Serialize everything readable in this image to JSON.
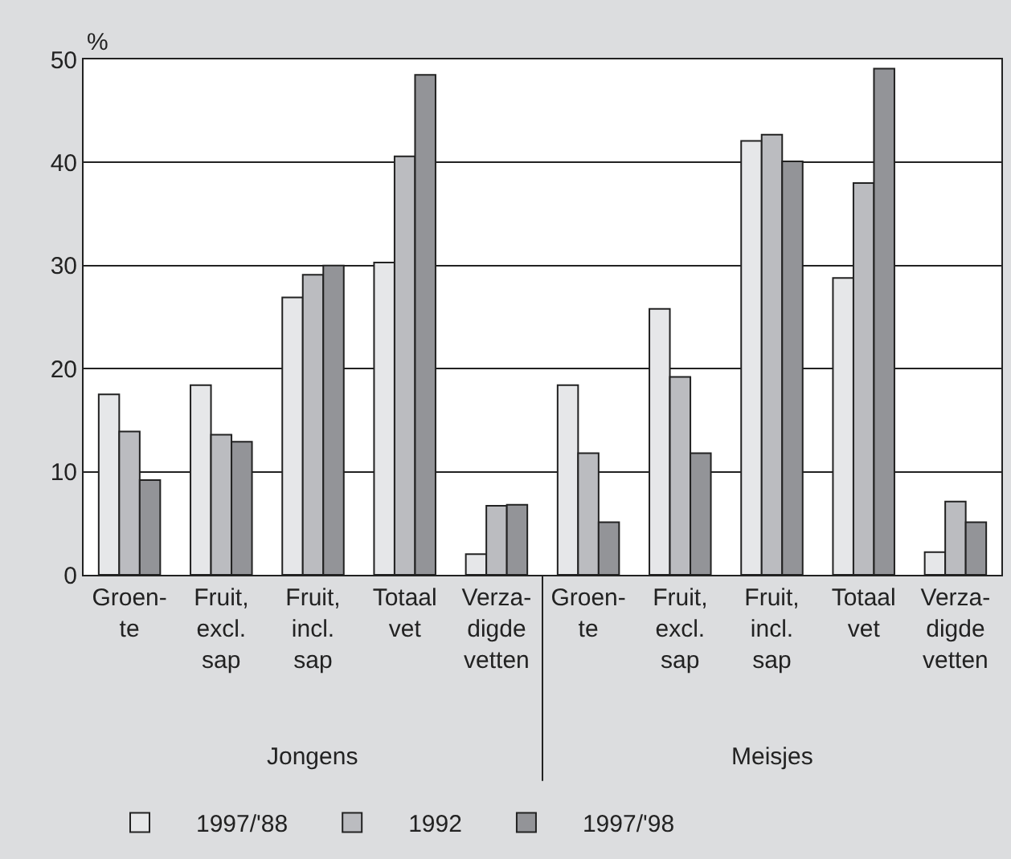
{
  "chart_data": {
    "type": "bar",
    "ylabel": "%",
    "categories": [
      "Groen-\nte",
      "Fruit,\nexcl.\nsap",
      "Fruit,\nincl.\nsap",
      "Totaal\nvet",
      "Verza-\ndigde\nvetten",
      "Groen-\nte",
      "Fruit,\nexcl.\nsap",
      "Fruit,\nincl.\nsap",
      "Totaal\nvet",
      "Verza-\ndigde\nvetten"
    ],
    "series": [
      {
        "name": "1997/'88",
        "color": "#e6e7e9",
        "values": [
          17.5,
          18.4,
          26.9,
          30.3,
          2.0,
          18.4,
          25.8,
          42.1,
          28.8,
          2.2
        ]
      },
      {
        "name": "1992",
        "color": "#bbbcc0",
        "values": [
          13.9,
          13.6,
          29.1,
          40.6,
          6.7,
          11.8,
          19.2,
          42.7,
          38.0,
          7.1
        ]
      },
      {
        "name": "1997/'98",
        "color": "#939498",
        "values": [
          9.2,
          12.9,
          30.0,
          48.5,
          6.8,
          5.1,
          11.8,
          40.1,
          49.1,
          5.1
        ]
      }
    ],
    "annotations": [
      "Jongens",
      "Meisjes"
    ],
    "ylim": [
      0,
      50
    ],
    "yticks": [
      0,
      10,
      20,
      30,
      40,
      50
    ],
    "grid": "y",
    "legend": "bottom"
  }
}
